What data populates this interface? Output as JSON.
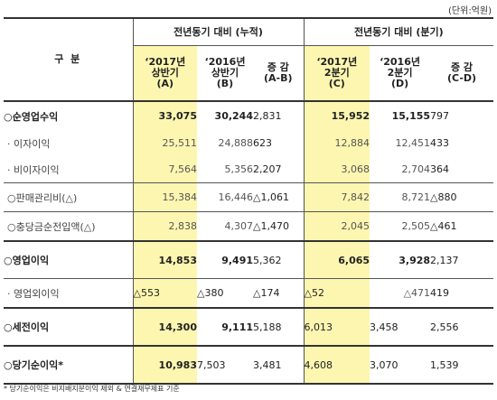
{
  "unit": "(단위:억원)",
  "header": {
    "category": "구 분",
    "group_cumulative": "전년동기 대비 (누적)",
    "group_quarter": "전년동기 대비 (분기)",
    "col_a_line1": "‘2017년",
    "col_a_line2": "상반기",
    "col_a_line3": "(A)",
    "col_b_line1": "‘2016년",
    "col_b_line2": "상반기",
    "col_b_line3": "(B)",
    "col_ab_line1": "증 감",
    "col_ab_line2": "(A-B)",
    "col_c_line1": "‘2017년",
    "col_c_line2": "2분기",
    "col_c_line3": "(C)",
    "col_d_line1": "‘2016년",
    "col_d_line2": "2분기",
    "col_d_line3": "(D)",
    "col_cd_line1": "증 감",
    "col_cd_line2": "(C-D)"
  },
  "rows": [
    {
      "label": "○순영업수익",
      "a": "33,075",
      "b": "30,244",
      "ab": "2,831",
      "c": "15,952",
      "d": "15,155",
      "cd": "797"
    },
    {
      "label": "· 이자이익",
      "a": "25,511",
      "b": "24,888",
      "ab": "623",
      "c": "12,884",
      "d": "12,451",
      "cd": "433"
    },
    {
      "label": "· 비이자이익",
      "a": "7,564",
      "b": "5,356",
      "ab": "2,207",
      "c": "3,068",
      "d": "2,704",
      "cd": "364"
    },
    {
      "label": "○판매관리비(△)",
      "a": "15,384",
      "b": "16,446",
      "ab": "△1,061",
      "c": "7,842",
      "d": "8,721",
      "cd": "△880"
    },
    {
      "label": "○충당금순전입액(△)",
      "a": "2,838",
      "b": "4,307",
      "ab": "△1,470",
      "c": "2,045",
      "d": "2,505",
      "cd": "△461"
    },
    {
      "label": "○영업이익",
      "a": "14,853",
      "b": "9,491",
      "ab": "5,362",
      "c": "6,065",
      "d": "3,928",
      "cd": "2,137"
    },
    {
      "label": "· 영업외이익",
      "a": "△553",
      "b": "△380",
      "ab": "△174",
      "c": "△52",
      "d": "△471",
      "cd": "419"
    },
    {
      "label": "○세전이익",
      "a": "14,300",
      "b": "9,111",
      "ab": "5,188",
      "c": "6,013",
      "d": "3,458",
      "cd": "2,556"
    },
    {
      "label": "○당기순이익*",
      "a": "10,983",
      "b": "7,503",
      "ab": "3,481",
      "c": "4,608",
      "d": "3,070",
      "cd": "1,539"
    }
  ],
  "footnote": "* 당기순이익은 비지배지분이익 제외 & 연결재무제표 기준"
}
